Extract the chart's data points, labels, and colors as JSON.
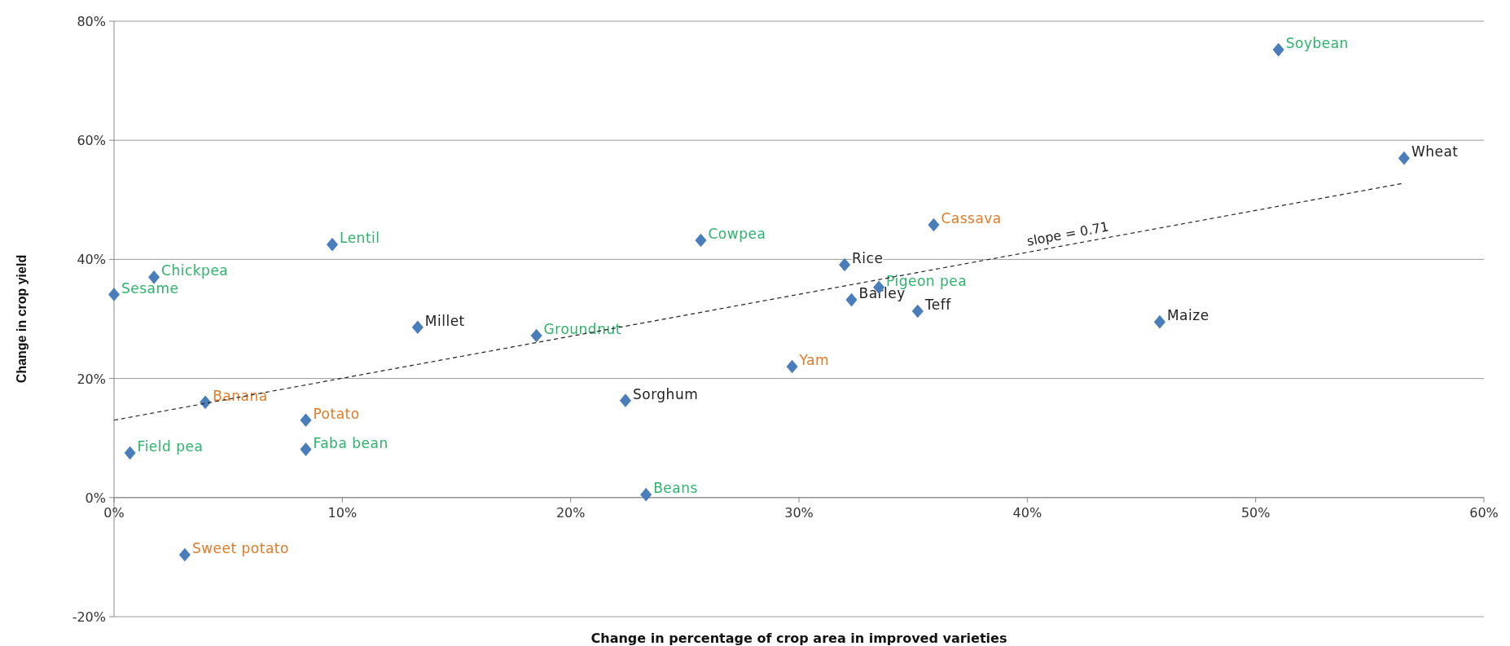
{
  "chart_data": {
    "type": "scatter",
    "xlabel": "Change in percentage of crop area in improved varieties",
    "ylabel": "Change in crop yield",
    "xlim": [
      0,
      60
    ],
    "ylim": [
      -20,
      80
    ],
    "xticks": [
      {
        "value": 0,
        "label": "0%"
      },
      {
        "value": 10,
        "label": "10%"
      },
      {
        "value": 20,
        "label": "20%"
      },
      {
        "value": 30,
        "label": "30%"
      },
      {
        "value": 40,
        "label": "40%"
      },
      {
        "value": 50,
        "label": "50%"
      },
      {
        "value": 60,
        "label": "60%"
      }
    ],
    "yticks": [
      {
        "value": -20,
        "label": "-20%"
      },
      {
        "value": 0,
        "label": "0%"
      },
      {
        "value": 20,
        "label": "20%"
      },
      {
        "value": 40,
        "label": "40%"
      },
      {
        "value": 60,
        "label": "60%"
      },
      {
        "value": 80,
        "label": "80%"
      }
    ],
    "grid": "y",
    "marker": "diamond",
    "series": [
      {
        "color": "#4a7ebb",
        "x": [
          56.5,
          32.0,
          32.3,
          35.2,
          45.8,
          13.3,
          22.4
        ],
        "values": [
          57.0,
          39.1,
          33.2,
          31.3,
          29.5,
          28.6,
          16.3
        ],
        "value_labels": [
          "Wheat",
          "Rice",
          "Barley",
          "Teff",
          "Maize",
          "Millet",
          "Sorghum"
        ]
      },
      {
        "color": "#4a7ebb",
        "x": [
          51.0,
          25.7,
          9.56,
          1.75,
          0,
          33.5,
          18.5,
          0.7,
          8.4,
          23.3
        ],
        "values": [
          75.2,
          43.2,
          42.5,
          37.0,
          34.1,
          35.3,
          27.2,
          7.5,
          8.1,
          0.5
        ],
        "value_labels": [
          "Soybean",
          "Cowpea",
          "Lentil",
          "Chickpea",
          "Sesame",
          "Pigeon pea",
          "Groundnut",
          "Field pea",
          "Faba bean",
          "Beans"
        ]
      },
      {
        "color": "#4a7ebb",
        "x": [
          35.9,
          29.7,
          4.0,
          8.4,
          3.1
        ],
        "values": [
          45.8,
          22.0,
          16.0,
          13.0,
          -9.6
        ],
        "value_labels": [
          "Cassava",
          "Yam",
          "Banana",
          "Potato",
          "Sweet potato"
        ]
      },
      {
        "type": "line",
        "color": "#222222",
        "line_style": "dashed",
        "marker": "none",
        "x": [
          0,
          56.5
        ],
        "values": [
          13.0,
          52.8
        ]
      }
    ],
    "annotations": [
      "slope = 0.71"
    ]
  }
}
